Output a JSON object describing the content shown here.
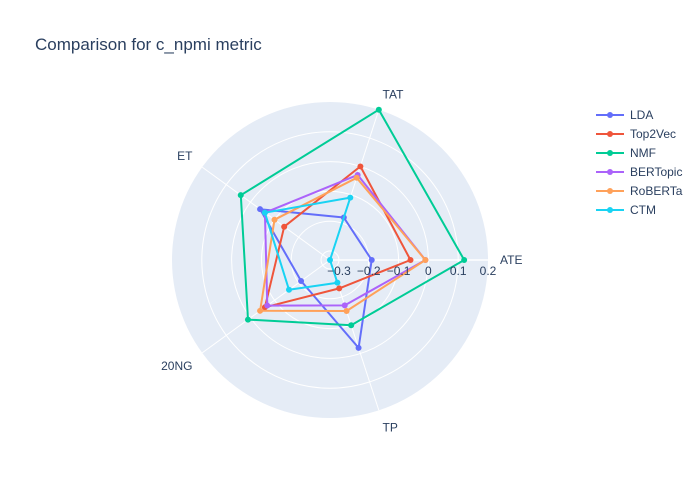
{
  "chart_data": {
    "type": "radar",
    "title": "Comparison for c_npmi metric",
    "axes": [
      "ATE",
      "TAT",
      "ET",
      "20NG",
      "TP"
    ],
    "radial_range": [
      -0.33,
      0.2
    ],
    "radial_ticks": [
      -0.3,
      -0.2,
      -0.1,
      0,
      0.1,
      0.2
    ],
    "radial_tick_labels": [
      "−0.3",
      "−0.2",
      "−0.1",
      "0",
      "0.1",
      "0.2"
    ],
    "legend_position": "top-right",
    "series": [
      {
        "name": "LDA",
        "color": "#636efa",
        "values": [
          -0.19,
          -0.18,
          -0.04,
          -0.21,
          -0.02
        ]
      },
      {
        "name": "Top2Vec",
        "color": "#ef553b",
        "values": [
          -0.06,
          0.0,
          -0.14,
          -0.06,
          -0.23
        ]
      },
      {
        "name": "NMF",
        "color": "#00cc96",
        "values": [
          0.12,
          0.2,
          0.04,
          0.01,
          -0.1
        ]
      },
      {
        "name": "BERTopic",
        "color": "#ab63fa",
        "values": [
          -0.01,
          -0.03,
          -0.06,
          -0.07,
          -0.17
        ]
      },
      {
        "name": "RoBERTa",
        "color": "#ffa15a",
        "values": [
          -0.01,
          -0.04,
          -0.1,
          -0.04,
          -0.15
        ]
      },
      {
        "name": "CTM",
        "color": "#19d3f3",
        "values": [
          -0.33,
          -0.11,
          -0.06,
          -0.16,
          -0.25
        ]
      }
    ]
  }
}
